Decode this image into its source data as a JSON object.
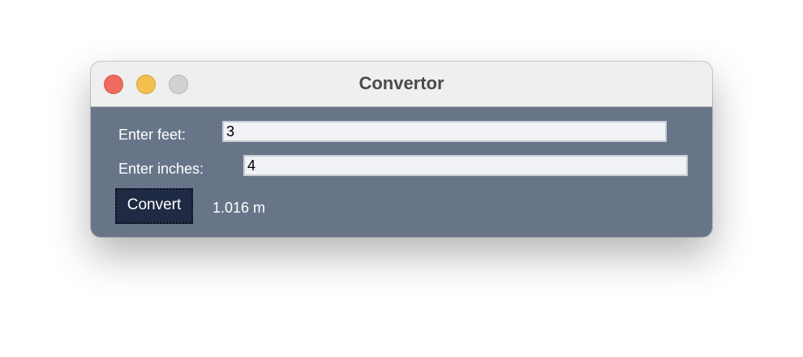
{
  "window": {
    "title": "Convertor"
  },
  "form": {
    "feet_label": "Enter feet:",
    "feet_value": "3",
    "inches_label": "Enter inches:",
    "inches_value": "4",
    "convert_label": "Convert",
    "result_text": "1.016 m"
  },
  "colors": {
    "body_bg": "#687589",
    "button_bg": "#1f2a44",
    "close": "#ee6a5f",
    "minimize": "#f5bf4f",
    "maximize": "#d1d1d1"
  }
}
